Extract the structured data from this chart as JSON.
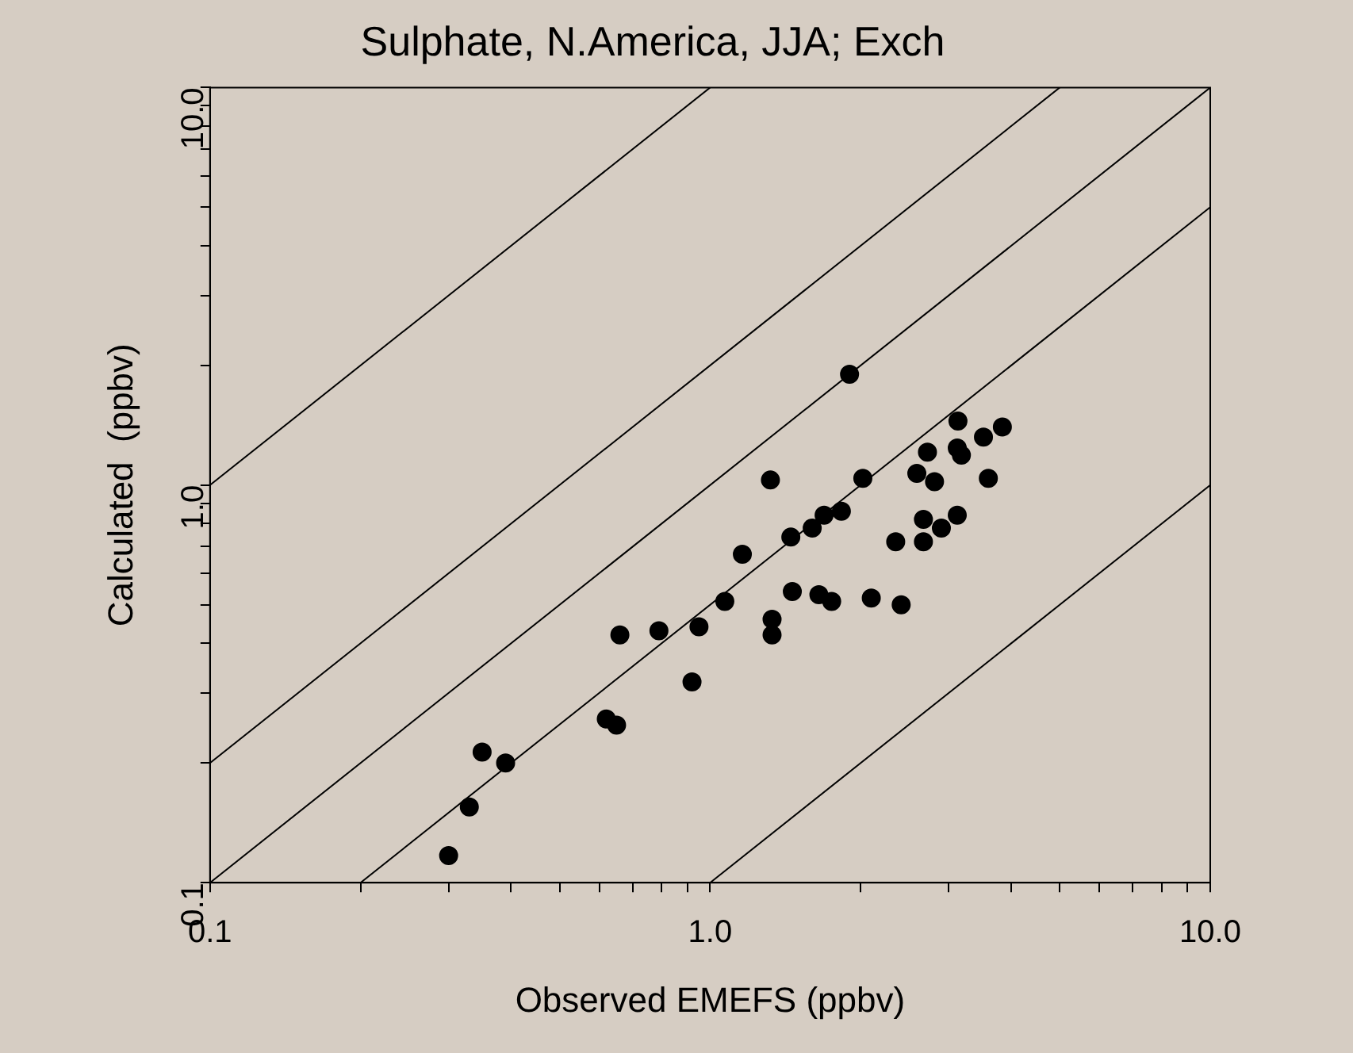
{
  "chart_data": {
    "type": "scatter",
    "title": "Sulphate, N.America, JJA; Exch",
    "xlabel": "Observed EMEFS (ppbv)",
    "ylabel": "Calculated  (ppbv)",
    "log": "xy",
    "xlim": [
      0.1,
      10
    ],
    "ylim": [
      0.1,
      10
    ],
    "xticks": [
      {
        "value": 0.1,
        "label": "0.1"
      },
      {
        "value": 0.2,
        "label": null
      },
      {
        "value": 0.3,
        "label": null
      },
      {
        "value": 0.4,
        "label": null
      },
      {
        "value": 0.5,
        "label": null
      },
      {
        "value": 0.6,
        "label": null
      },
      {
        "value": 0.7,
        "label": null
      },
      {
        "value": 0.8,
        "label": null
      },
      {
        "value": 0.9,
        "label": null
      },
      {
        "value": 1,
        "label": "1.0"
      },
      {
        "value": 2,
        "label": null
      },
      {
        "value": 3,
        "label": null
      },
      {
        "value": 4,
        "label": null
      },
      {
        "value": 5,
        "label": null
      },
      {
        "value": 6,
        "label": null
      },
      {
        "value": 7,
        "label": null
      },
      {
        "value": 8,
        "label": null
      },
      {
        "value": 9,
        "label": null
      },
      {
        "value": 10,
        "label": "10.0"
      }
    ],
    "yticks": [
      {
        "value": 0.1,
        "label": "0.1"
      },
      {
        "value": 0.2,
        "label": null
      },
      {
        "value": 0.3,
        "label": null
      },
      {
        "value": 0.4,
        "label": null
      },
      {
        "value": 0.5,
        "label": null
      },
      {
        "value": 0.6,
        "label": null
      },
      {
        "value": 0.7,
        "label": null
      },
      {
        "value": 0.8,
        "label": null
      },
      {
        "value": 0.9,
        "label": null
      },
      {
        "value": 1,
        "label": "1.0"
      },
      {
        "value": 2,
        "label": null
      },
      {
        "value": 3,
        "label": null
      },
      {
        "value": 4,
        "label": null
      },
      {
        "value": 5,
        "label": null
      },
      {
        "value": 6,
        "label": null
      },
      {
        "value": 7,
        "label": null
      },
      {
        "value": 8,
        "label": null
      },
      {
        "value": 9,
        "label": null
      },
      {
        "value": 10,
        "label": "10.0"
      }
    ],
    "grid": false,
    "legend": false,
    "series": [
      {
        "color": "#000000",
        "marker": "circle",
        "x": [
          0.3,
          0.33,
          0.35,
          0.39,
          0.62,
          0.65,
          0.66,
          0.79,
          0.92,
          0.95,
          1.07,
          1.16,
          1.32,
          1.33,
          1.33,
          1.9,
          2.02,
          1.45,
          1.6,
          1.69,
          1.83,
          1.46,
          1.65,
          1.75,
          2.1,
          2.41,
          2.35,
          3.13,
          3.84,
          3.52,
          2.72,
          3.12,
          3.18,
          2.59,
          2.81,
          3.6,
          2.67,
          3.12,
          2.9,
          2.67
        ],
        "values": [
          0.117,
          0.155,
          0.213,
          0.2,
          0.258,
          0.249,
          0.42,
          0.43,
          0.32,
          0.44,
          0.51,
          0.67,
          1.03,
          0.46,
          0.42,
          1.9,
          1.04,
          0.74,
          0.78,
          0.84,
          0.86,
          0.54,
          0.53,
          0.51,
          0.52,
          0.5,
          0.72,
          1.45,
          1.4,
          1.32,
          1.21,
          1.24,
          1.19,
          1.07,
          1.02,
          1.04,
          0.82,
          0.84,
          0.78,
          0.72
        ]
      },
      {
        "type": "line",
        "color": "#000000",
        "line_style": "solid",
        "marker": "none",
        "x": [
          0.1,
          1
        ],
        "values": [
          1,
          10
        ]
      },
      {
        "type": "line",
        "color": "#000000",
        "line_style": "solid",
        "marker": "none",
        "x": [
          0.1,
          5
        ],
        "values": [
          0.2,
          10
        ]
      },
      {
        "type": "line",
        "color": "#000000",
        "line_style": "solid",
        "marker": "none",
        "x": [
          0.1,
          10
        ],
        "values": [
          0.1,
          10
        ]
      },
      {
        "type": "line",
        "color": "#000000",
        "line_style": "solid",
        "marker": "none",
        "x": [
          0.2,
          10
        ],
        "values": [
          0.1,
          5
        ]
      },
      {
        "type": "line",
        "color": "#000000",
        "line_style": "solid",
        "marker": "none",
        "x": [
          1,
          10
        ],
        "values": [
          0.1,
          1
        ]
      }
    ]
  }
}
